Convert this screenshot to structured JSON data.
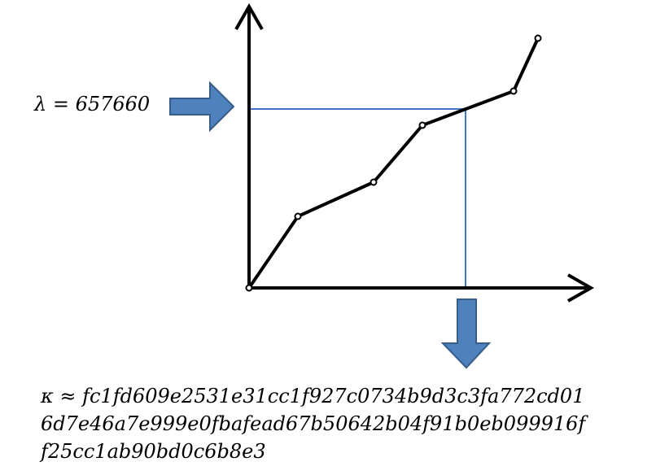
{
  "lambda_label": "λ = 657660",
  "kappa_lines": [
    "κ ≈ fc1fd609e2531e31cc1f927c0734b9d3c3fa772cd01",
    "6d7e46a7e999e0fbafead67b50642b04f91b0eb099916f",
    "f25cc1ab90bd0c6b8e3"
  ],
  "colors": {
    "curve": "#000000",
    "axes": "#000000",
    "guide_lines": "#4472c4",
    "arrow_fill": "#4f81bd",
    "arrow_stroke": "#385d8a"
  }
}
